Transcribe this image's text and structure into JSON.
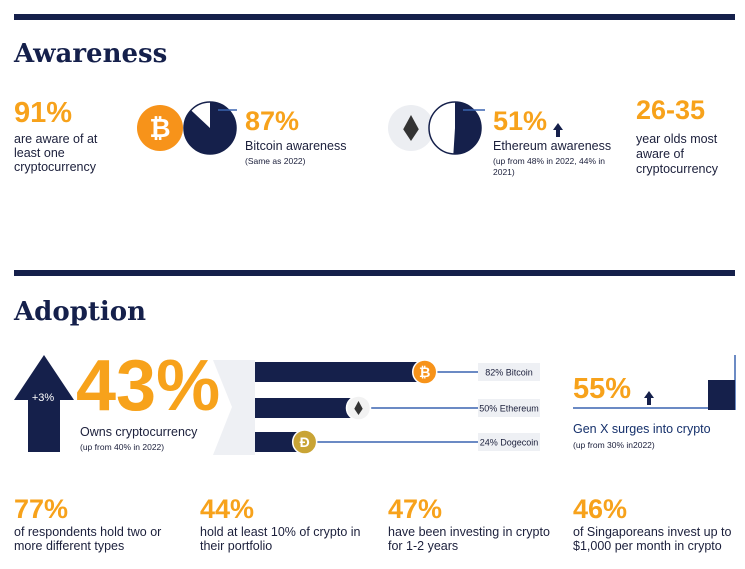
{
  "awareness": {
    "title": "Awareness",
    "total": {
      "number": "91%",
      "lines": [
        "are aware of at",
        "least one",
        "cryptocurrency"
      ]
    },
    "pies": [
      {
        "share": 87,
        "label": "87%",
        "name": "Bitcoin awareness",
        "icon": "₿",
        "note": [
          "(Same as 2022)"
        ]
      },
      {
        "share": 51,
        "label": "51%",
        "name": "Ethereum awareness",
        "note": [
          "(up from 48% in 2022, 44% in",
          "2021)"
        ]
      }
    ],
    "age": {
      "number": "26-35",
      "lines": [
        "year olds most",
        "aware of",
        "cryptocurrency"
      ]
    }
  },
  "adoption": {
    "title": "Adoption",
    "change": "+3%",
    "headline": {
      "number": "43%",
      "text": "Owns cryptocurrency",
      "note": "(up from 40% in 2022)"
    },
    "coins": [
      {
        "share": 82,
        "label": "82% Bitcoin",
        "icon": "₿"
      },
      {
        "share": 50,
        "label": "50% Ethereum"
      },
      {
        "share": 24,
        "label": "24% Dogecoin",
        "icon": "Ð"
      }
    ],
    "genx": {
      "number": "55%",
      "text": "Gen X surges into crypto",
      "note": "(up from 30% in2022)"
    },
    "facts": [
      {
        "number": "77%",
        "lines": [
          "of respondents hold two or",
          "more different types"
        ]
      },
      {
        "number": "44%",
        "lines": [
          "hold at least 10% of crypto in",
          "their portfolio"
        ]
      },
      {
        "number": "47%",
        "lines": [
          "have been investing in crypto",
          "for 1-2 years"
        ]
      },
      {
        "number": "46%",
        "lines": [
          "of Singaporeans invest up to",
          "$1,000 per month in crypto"
        ]
      }
    ]
  }
}
